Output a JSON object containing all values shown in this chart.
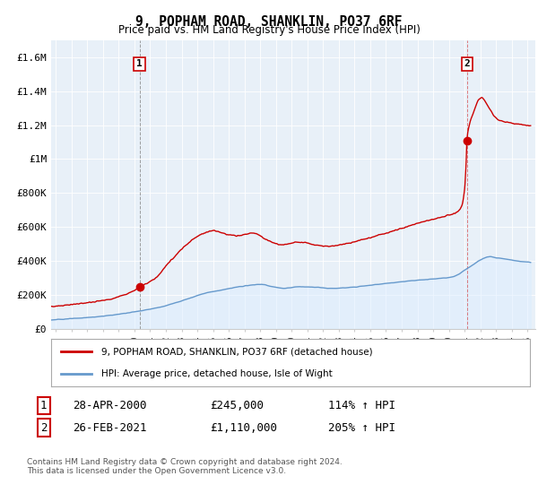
{
  "title": "9, POPHAM ROAD, SHANKLIN, PO37 6RF",
  "subtitle": "Price paid vs. HM Land Registry's House Price Index (HPI)",
  "ylabel_ticks": [
    "£0",
    "£200K",
    "£400K",
    "£600K",
    "£800K",
    "£1M",
    "£1.2M",
    "£1.4M",
    "£1.6M"
  ],
  "ylim": [
    0,
    1700000
  ],
  "xlim_start": 1994.7,
  "xlim_end": 2025.5,
  "sale1_date": 2000.32,
  "sale1_price": 245000,
  "sale2_date": 2021.15,
  "sale2_price": 1110000,
  "hpi_color": "#6699cc",
  "hpi_fill_color": "#ddeeff",
  "price_color": "#cc0000",
  "legend_label_red": "9, POPHAM ROAD, SHANKLIN, PO37 6RF (detached house)",
  "legend_label_blue": "HPI: Average price, detached house, Isle of Wight",
  "table_row1": [
    "1",
    "28-APR-2000",
    "£245,000",
    "114% ↑ HPI"
  ],
  "table_row2": [
    "2",
    "26-FEB-2021",
    "£1,110,000",
    "205% ↑ HPI"
  ],
  "footer": "Contains HM Land Registry data © Crown copyright and database right 2024.\nThis data is licensed under the Open Government Licence v3.0.",
  "background_color": "#ffffff",
  "plot_bg_color": "#e8f0f8",
  "grid_color": "#ffffff"
}
